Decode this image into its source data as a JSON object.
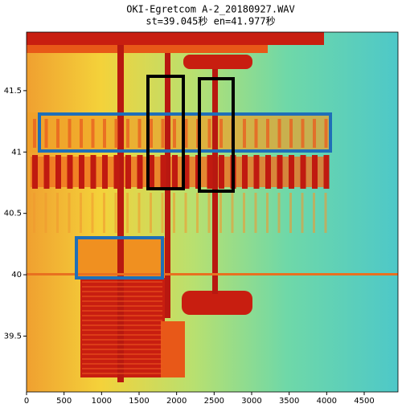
{
  "chart_data": {
    "type": "spectrogram",
    "title": "OKI-Egretcom A-2_20180927.WAV",
    "subtitle": "st=39.045秒 en=41.977秒",
    "xlim": [
      0,
      4950
    ],
    "xticks": [
      0,
      500,
      1000,
      1500,
      2000,
      2500,
      3000,
      3500,
      4000,
      4500
    ],
    "ylim": [
      39.045,
      41.977
    ],
    "yticks": [
      39.5,
      40,
      40.5,
      41,
      41.5
    ]
  }
}
